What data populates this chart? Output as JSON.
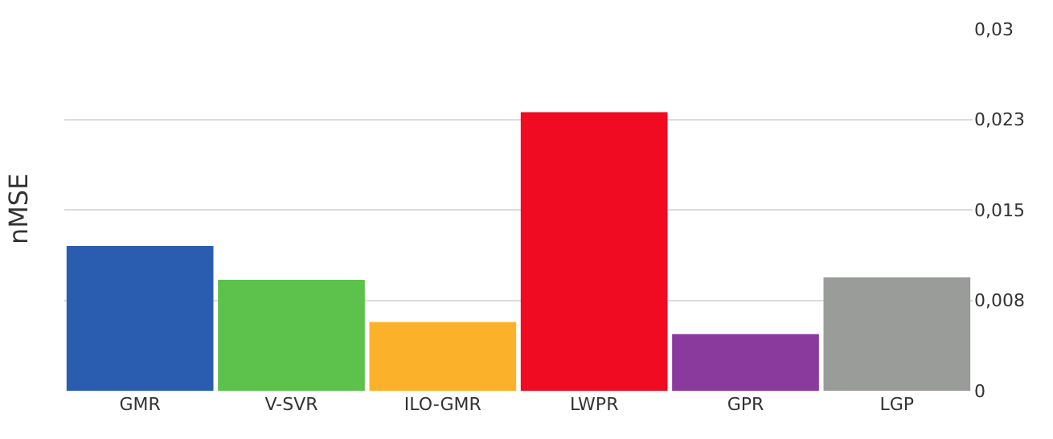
{
  "chart_data": {
    "type": "bar",
    "ylabel": "nMSE",
    "categories": [
      "GMR",
      "V-SVR",
      "ILO-GMR",
      "LWPR",
      "GPR",
      "LGP"
    ],
    "values": [
      0.012,
      0.0092,
      0.0057,
      0.0231,
      0.0047,
      0.0094
    ],
    "colors": [
      "#2a5db0",
      "#5cc24c",
      "#fbb22a",
      "#f00a22",
      "#8a3a9c",
      "#9a9c9a"
    ],
    "ylim": [
      0,
      0.03
    ],
    "yticks": [
      0,
      {
        "value": 0.0075,
        "label": "0,008"
      },
      {
        "value": 0.015,
        "label": "0,015"
      },
      {
        "value": 0.0225,
        "label": "0,023"
      },
      {
        "value": 0.03,
        "label": "0,03"
      }
    ],
    "grid": "y"
  }
}
